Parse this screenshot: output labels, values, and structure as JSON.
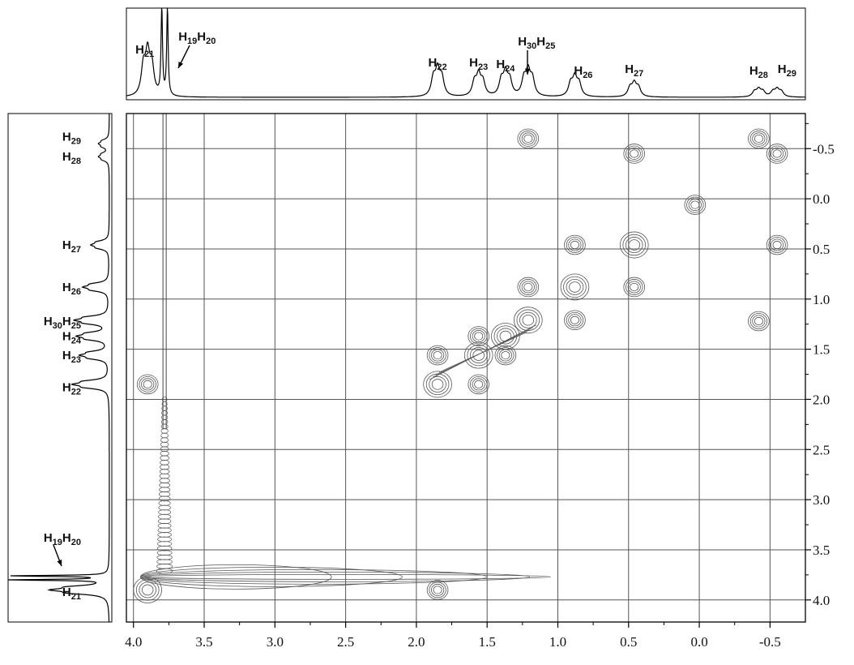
{
  "chart_data": {
    "type": "contour",
    "title": "",
    "xlabel": "",
    "ylabel": "",
    "x_axis": {
      "reversed": true,
      "range": [
        4.05,
        -0.75
      ],
      "ticks": [
        "4.0",
        "3.5",
        "3.0",
        "2.5",
        "2.0",
        "1.5",
        "1.0",
        "0.5",
        "0.0",
        "-0.5"
      ],
      "tick_values": [
        4.0,
        3.5,
        3.0,
        2.5,
        2.0,
        1.5,
        1.0,
        0.5,
        0.0,
        -0.5
      ]
    },
    "y_axis": {
      "position": "right",
      "range": [
        -0.85,
        4.22
      ],
      "ticks": [
        "-0.5",
        "0.0",
        "0.5",
        "1.0",
        "1.5",
        "2.0",
        "2.5",
        "3.0",
        "3.5",
        "4.0"
      ],
      "tick_values": [
        -0.5,
        0.0,
        0.5,
        1.0,
        1.5,
        2.0,
        2.5,
        3.0,
        3.5,
        4.0
      ]
    },
    "grid": true,
    "top_spectrum_peaks": [
      {
        "ppm": 3.9,
        "h": 0.45
      },
      {
        "ppm": 3.8,
        "h": 1.0
      },
      {
        "ppm": 3.76,
        "h": 1.0
      },
      {
        "ppm": 1.85,
        "h": 0.28
      },
      {
        "ppm": 1.56,
        "h": 0.22
      },
      {
        "ppm": 1.37,
        "h": 0.24
      },
      {
        "ppm": 1.21,
        "h": 0.26
      },
      {
        "ppm": 0.88,
        "h": 0.2
      },
      {
        "ppm": 0.46,
        "h": 0.14
      },
      {
        "ppm": -0.42,
        "h": 0.08
      },
      {
        "ppm": -0.55,
        "h": 0.08
      }
    ],
    "top_labels": [
      {
        "main": "H",
        "sub": "21",
        "ppm": 3.92
      },
      {
        "main": "H",
        "sub": "19",
        "main2": "H",
        "sub2": "20",
        "ppm": 3.55
      },
      {
        "main": "H",
        "sub": "22",
        "ppm": 1.85
      },
      {
        "main": "H",
        "sub": "23",
        "ppm": 1.56
      },
      {
        "main": "H",
        "sub": "24",
        "ppm": 1.37
      },
      {
        "main": "H",
        "sub": "30",
        "main2": "H",
        "sub2": "25",
        "ppm": 1.15
      },
      {
        "main": "H",
        "sub": "26",
        "ppm": 0.82
      },
      {
        "main": "H",
        "sub": "27",
        "ppm": 0.46
      },
      {
        "main": "H",
        "sub": "28",
        "ppm": -0.42
      },
      {
        "main": "H",
        "sub": "29",
        "ppm": -0.62
      }
    ],
    "left_labels": [
      {
        "main": "H",
        "sub": "29",
        "ppm": -0.62
      },
      {
        "main": "H",
        "sub": "28",
        "ppm": -0.42
      },
      {
        "main": "H",
        "sub": "27",
        "ppm": 0.46
      },
      {
        "main": "H",
        "sub": "26",
        "ppm": 0.88
      },
      {
        "main": "H",
        "sub": "30",
        "main2": "H",
        "sub2": "25",
        "ppm": 1.22
      },
      {
        "main": "H",
        "sub": "24",
        "ppm": 1.37
      },
      {
        "main": "H",
        "sub": "23",
        "ppm": 1.56
      },
      {
        "main": "H",
        "sub": "22",
        "ppm": 1.88
      },
      {
        "main": "H",
        "sub": "19",
        "main2": "H",
        "sub2": "20",
        "ppm": 3.38
      },
      {
        "main": "H",
        "sub": "21",
        "ppm": 3.92
      }
    ],
    "cross_peaks": [
      {
        "x": 1.21,
        "y": -0.6
      },
      {
        "x": 0.46,
        "y": -0.45
      },
      {
        "x": -0.55,
        "y": -0.45
      },
      {
        "x": -0.42,
        "y": -0.6
      },
      {
        "x": 0.03,
        "y": 0.06
      },
      {
        "x": 0.88,
        "y": 0.46
      },
      {
        "x": 0.46,
        "y": 0.46
      },
      {
        "x": -0.55,
        "y": 0.46
      },
      {
        "x": 1.21,
        "y": 0.88
      },
      {
        "x": 0.88,
        "y": 0.88
      },
      {
        "x": 0.46,
        "y": 0.88
      },
      {
        "x": 0.88,
        "y": 1.21
      },
      {
        "x": 1.21,
        "y": 1.21
      },
      {
        "x": -0.42,
        "y": 1.22
      },
      {
        "x": 1.37,
        "y": 1.37
      },
      {
        "x": 1.56,
        "y": 1.37
      },
      {
        "x": 1.56,
        "y": 1.56
      },
      {
        "x": 1.85,
        "y": 1.56
      },
      {
        "x": 1.37,
        "y": 1.56
      },
      {
        "x": 1.85,
        "y": 1.85
      },
      {
        "x": 1.56,
        "y": 1.85
      },
      {
        "x": 3.9,
        "y": 1.85
      },
      {
        "x": 1.85,
        "y": 3.9
      },
      {
        "x": 3.9,
        "y": 3.9
      }
    ],
    "diagonal_ridge": [
      {
        "x": 1.85,
        "y": 1.85
      },
      {
        "x": 1.21,
        "y": 1.21
      }
    ],
    "t1_noise_x": 3.78,
    "solvent_line_y": 3.77
  }
}
